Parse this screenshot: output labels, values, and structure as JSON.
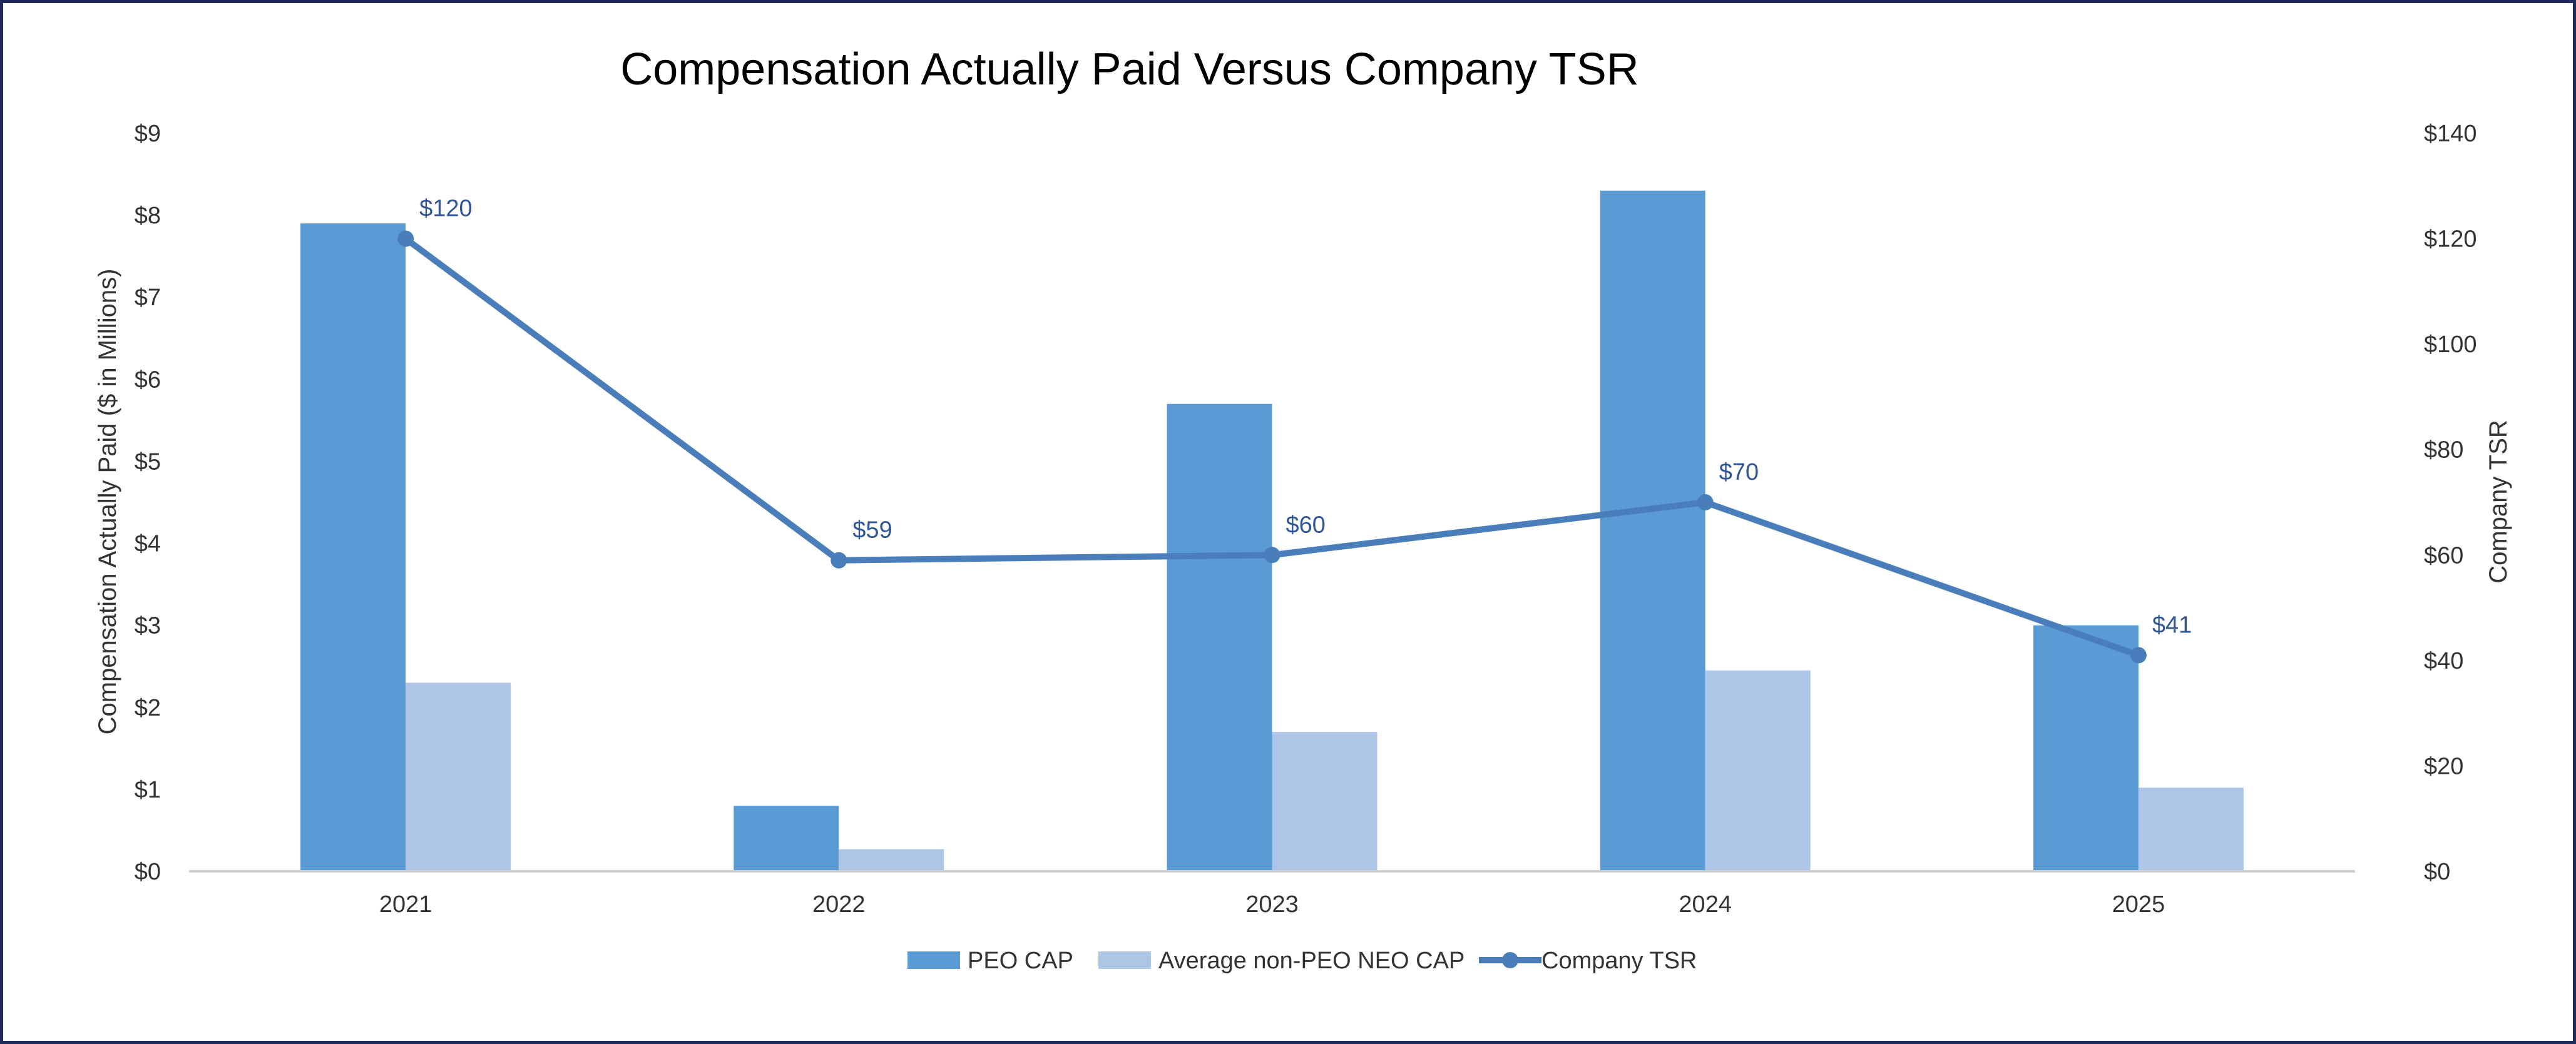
{
  "chart_data": {
    "type": "bar",
    "title": "Compensation Actually Paid Versus Company TSR",
    "categories": [
      "2021",
      "2022",
      "2023",
      "2024",
      "2025"
    ],
    "ylabel": "Compensation Actually Paid ($ in Millions)",
    "y2label": "Company TSR",
    "ylim": [
      0,
      9
    ],
    "y2lim": [
      0,
      140
    ],
    "yticks": [
      "$0",
      "$1",
      "$2",
      "$3",
      "$4",
      "$5",
      "$6",
      "$7",
      "$8",
      "$9"
    ],
    "y2ticks": [
      "$0",
      "$20",
      "$40",
      "$60",
      "$80",
      "$100",
      "$120",
      "$140"
    ],
    "grid": false,
    "legend_position": "bottom",
    "series": [
      {
        "name": "PEO CAP",
        "type": "bar",
        "axis": "left",
        "color": "#5b9bd5",
        "values": [
          7.9,
          0.8,
          5.7,
          8.3,
          3.0
        ]
      },
      {
        "name": "Average non-PEO NEO CAP",
        "type": "bar",
        "axis": "left",
        "color": "#adc6e8",
        "values": [
          2.3,
          0.27,
          1.7,
          2.45,
          1.02
        ]
      },
      {
        "name": "Company TSR",
        "type": "line",
        "axis": "right",
        "color": "#4a7ebb",
        "values": [
          120,
          59,
          60,
          70,
          41
        ],
        "labels": [
          "$120",
          "$59",
          "$60",
          "$70",
          "$41"
        ]
      }
    ]
  }
}
